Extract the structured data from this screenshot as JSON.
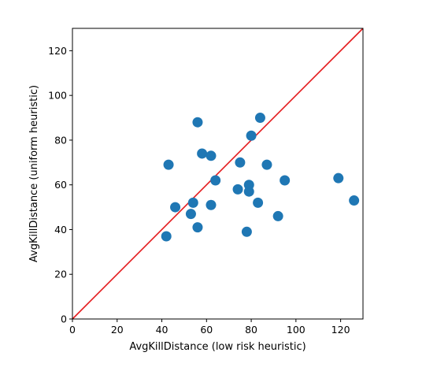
{
  "chart_data": {
    "type": "scatter",
    "title": "",
    "xlabel": "AvgKillDistance (low risk heuristic)",
    "ylabel": "AvgKillDistance (uniform heuristic)",
    "xlim": [
      0,
      130
    ],
    "ylim": [
      0,
      130
    ],
    "xticks": [
      0,
      20,
      40,
      60,
      80,
      100,
      120
    ],
    "yticks": [
      0,
      20,
      40,
      60,
      80,
      100,
      120
    ],
    "grid": false,
    "points": [
      {
        "x": 42,
        "y": 37
      },
      {
        "x": 43,
        "y": 69
      },
      {
        "x": 46,
        "y": 50
      },
      {
        "x": 53,
        "y": 47
      },
      {
        "x": 54,
        "y": 52
      },
      {
        "x": 56,
        "y": 88
      },
      {
        "x": 56,
        "y": 41
      },
      {
        "x": 58,
        "y": 74
      },
      {
        "x": 62,
        "y": 73
      },
      {
        "x": 62,
        "y": 51
      },
      {
        "x": 64,
        "y": 62
      },
      {
        "x": 74,
        "y": 58
      },
      {
        "x": 75,
        "y": 70
      },
      {
        "x": 78,
        "y": 39
      },
      {
        "x": 79,
        "y": 60
      },
      {
        "x": 79,
        "y": 57
      },
      {
        "x": 80,
        "y": 82
      },
      {
        "x": 83,
        "y": 52
      },
      {
        "x": 84,
        "y": 90
      },
      {
        "x": 87,
        "y": 69
      },
      {
        "x": 92,
        "y": 46
      },
      {
        "x": 95,
        "y": 62
      },
      {
        "x": 119,
        "y": 63
      },
      {
        "x": 126,
        "y": 53
      }
    ],
    "reference_line": {
      "from": [
        0,
        0
      ],
      "to": [
        130,
        130
      ],
      "color": "#e41a1c"
    },
    "marker_color": "#1f77b4"
  }
}
